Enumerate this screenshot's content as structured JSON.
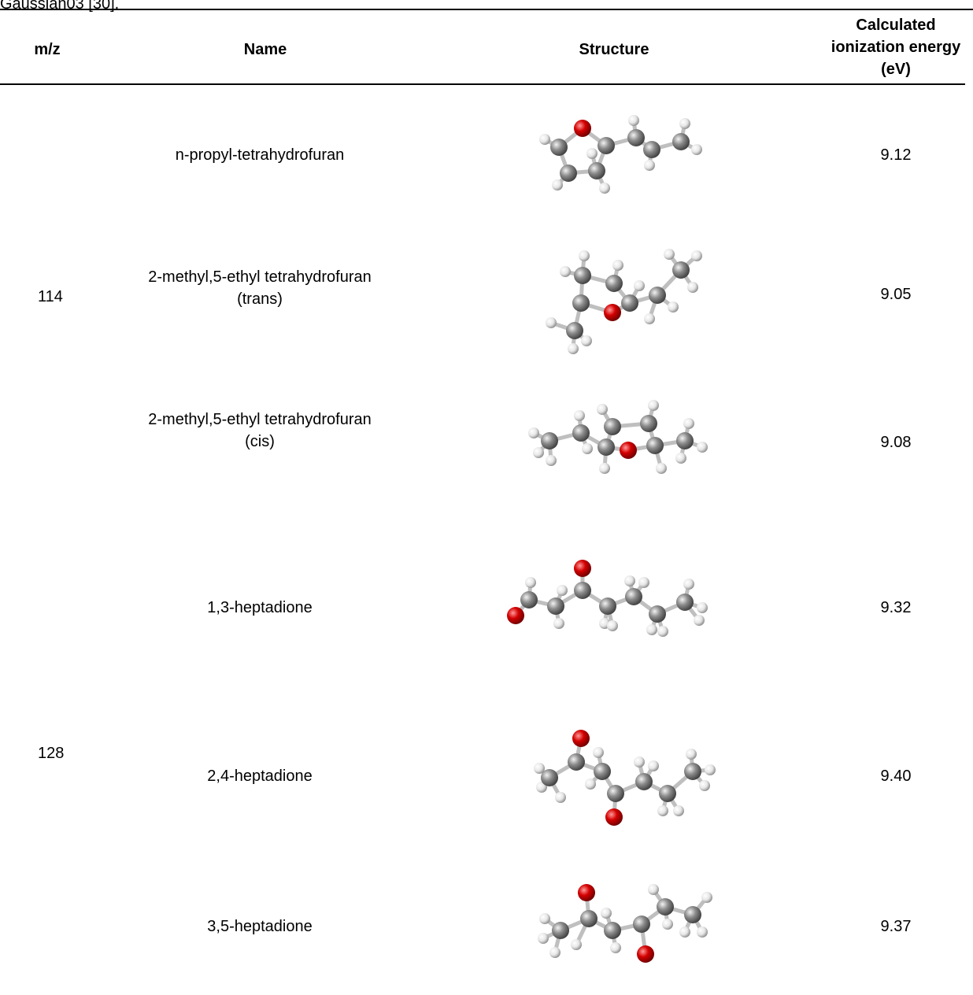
{
  "caption": "Gaussian03 [30].",
  "headers": {
    "mz": "m/z",
    "name": "Name",
    "structure": "Structure",
    "ie_line1": "Calculated",
    "ie_line2": "ionization energy",
    "ie_line3": "(eV)"
  },
  "groups": [
    {
      "mz": "114"
    },
    {
      "mz": "128"
    }
  ],
  "rows": [
    {
      "name_line1": "n-propyl-tetrahydrofuran",
      "name_line2": "",
      "ie": "9.12"
    },
    {
      "name_line1": "2-methyl,5-ethyl tetrahydrofuran",
      "name_line2": "(trans)",
      "ie": "9.05"
    },
    {
      "name_line1": "2-methyl,5-ethyl tetrahydrofuran",
      "name_line2": "(cis)",
      "ie": "9.08"
    },
    {
      "name_line1": "1,3-heptadione",
      "name_line2": "",
      "ie": "9.32"
    },
    {
      "name_line1": "2,4-heptadione",
      "name_line2": "",
      "ie": "9.40"
    },
    {
      "name_line1": "3,5-heptadione",
      "name_line2": "",
      "ie": "9.37"
    }
  ],
  "colors": {
    "carbon": "#8c8c8c",
    "oxygen": "#d40000",
    "hydrogen": "#e6e6e6",
    "bond": "#bfbfbf"
  }
}
